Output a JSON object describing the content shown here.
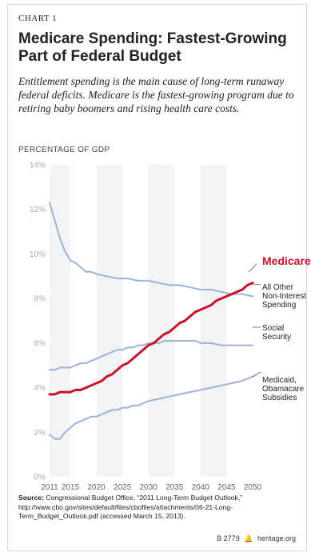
{
  "header": {
    "label": "CHART 1",
    "title": "Medicare Spending: Fastest-Growing Part of Federal Budget",
    "subtitle": "Entitlement spending is the main cause of long-term runaway federal deficits. Medicare is the fastest-growing program due to retiring baby boomers and rising health care costs."
  },
  "chart_data": {
    "type": "line",
    "ylabel": "PERCENTAGE OF GDP",
    "xlabel": "",
    "ylim": [
      0,
      14
    ],
    "xlim": [
      2011,
      2050
    ],
    "y_ticks": [
      "0%",
      "2%",
      "4%",
      "6%",
      "8%",
      "10%",
      "12%",
      "14%"
    ],
    "x_ticks": [
      "2011",
      "2015",
      "2020",
      "2025",
      "2030",
      "2035",
      "2040",
      "2045",
      "2050"
    ],
    "x_tick_values": [
      2011,
      2015,
      2020,
      2025,
      2030,
      2035,
      2040,
      2045,
      2050
    ],
    "grid": "vertical bands",
    "series": [
      {
        "name": "Medicare",
        "color": "#c8102e",
        "x": [
          2011,
          2012,
          2013,
          2014,
          2015,
          2016,
          2017,
          2018,
          2019,
          2020,
          2021,
          2022,
          2023,
          2024,
          2025,
          2026,
          2027,
          2028,
          2029,
          2030,
          2031,
          2032,
          2033,
          2034,
          2035,
          2036,
          2037,
          2038,
          2039,
          2040,
          2041,
          2042,
          2043,
          2044,
          2045,
          2046,
          2047,
          2048,
          2049,
          2050
        ],
        "values": [
          3.7,
          3.7,
          3.8,
          3.8,
          3.8,
          3.9,
          3.9,
          4.0,
          4.1,
          4.2,
          4.3,
          4.5,
          4.6,
          4.8,
          5.0,
          5.1,
          5.3,
          5.5,
          5.7,
          5.9,
          6.0,
          6.2,
          6.4,
          6.5,
          6.7,
          6.9,
          7.0,
          7.2,
          7.4,
          7.5,
          7.6,
          7.7,
          7.9,
          8.0,
          8.1,
          8.2,
          8.3,
          8.4,
          8.6,
          8.7
        ]
      },
      {
        "name": "All Other Non-Interest Spending",
        "color": "#9fb2d6",
        "x": [
          2011,
          2012,
          2013,
          2014,
          2015,
          2016,
          2017,
          2018,
          2019,
          2020,
          2022,
          2024,
          2026,
          2028,
          2030,
          2032,
          2034,
          2036,
          2038,
          2040,
          2042,
          2044,
          2046,
          2048,
          2050
        ],
        "values": [
          12.3,
          11.5,
          10.7,
          10.1,
          9.7,
          9.6,
          9.4,
          9.2,
          9.2,
          9.1,
          9.0,
          8.9,
          8.9,
          8.8,
          8.8,
          8.7,
          8.6,
          8.6,
          8.5,
          8.4,
          8.4,
          8.3,
          8.2,
          8.2,
          8.1
        ]
      },
      {
        "name": "Social Security",
        "color": "#9fb2d6",
        "x": [
          2011,
          2012,
          2013,
          2014,
          2015,
          2016,
          2017,
          2018,
          2019,
          2020,
          2021,
          2022,
          2023,
          2024,
          2025,
          2026,
          2027,
          2028,
          2029,
          2030,
          2031,
          2032,
          2033,
          2034,
          2035,
          2036,
          2037,
          2038,
          2039,
          2040,
          2042,
          2044,
          2046,
          2048,
          2050
        ],
        "values": [
          4.8,
          4.8,
          4.9,
          4.9,
          4.9,
          5.0,
          5.1,
          5.1,
          5.2,
          5.3,
          5.4,
          5.5,
          5.6,
          5.7,
          5.7,
          5.8,
          5.8,
          5.9,
          5.9,
          6.0,
          6.0,
          6.0,
          6.1,
          6.1,
          6.1,
          6.1,
          6.1,
          6.1,
          6.1,
          6.0,
          6.0,
          5.9,
          5.9,
          5.9,
          5.9
        ]
      },
      {
        "name": "Medicaid, Obamacare Subsidies",
        "color": "#9fb2d6",
        "x": [
          2011,
          2012,
          2013,
          2014,
          2015,
          2016,
          2017,
          2018,
          2019,
          2020,
          2021,
          2022,
          2023,
          2024,
          2025,
          2026,
          2027,
          2028,
          2030,
          2032,
          2034,
          2036,
          2038,
          2040,
          2042,
          2044,
          2046,
          2048,
          2050
        ],
        "values": [
          1.9,
          1.7,
          1.7,
          2.0,
          2.2,
          2.4,
          2.5,
          2.6,
          2.7,
          2.7,
          2.8,
          2.9,
          3.0,
          3.0,
          3.1,
          3.1,
          3.2,
          3.2,
          3.4,
          3.5,
          3.6,
          3.7,
          3.8,
          3.9,
          4.0,
          4.1,
          4.2,
          4.3,
          4.5
        ]
      }
    ],
    "annotations": [
      {
        "series": "Medicare",
        "lines": [
          "Medicare"
        ]
      },
      {
        "series": "All Other Non-Interest Spending",
        "lines": [
          "All Other",
          "Non-Interest",
          "Spending"
        ]
      },
      {
        "series": "Social Security",
        "lines": [
          "Social",
          "Security"
        ]
      },
      {
        "series": "Medicaid, Obamacare Subsidies",
        "lines": [
          "Medicaid,",
          "Obamacare",
          "Subsidies"
        ]
      }
    ]
  },
  "source": {
    "label": "Source:",
    "text": "Congressional Budget Office, “2011 Long-Term Budget Outlook,” http://www.cbo.gov/sites/default/files/cbofiles/attachments/06-21-Long-Term_Budget_Outlook.pdf (accessed March 15, 2013)."
  },
  "footer": {
    "report_id": "B 2779",
    "bell_icon": "liberty-bell-icon",
    "site": "heritage.org"
  }
}
